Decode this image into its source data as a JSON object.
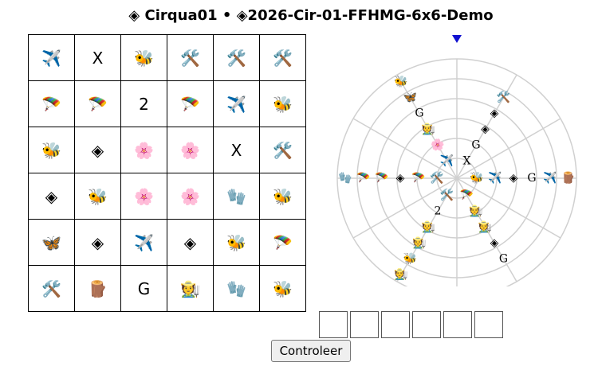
{
  "title": "◈ Cirqua01 • ◈2026-Cir-01-FFHMG-6x6-Demo",
  "grid": {
    "rows": [
      [
        "✈️",
        "X",
        "🐝",
        "🛠️",
        "🛠️",
        "🛠️"
      ],
      [
        "🪂",
        "🪂",
        "2",
        "🪂",
        "✈️",
        "🐝"
      ],
      [
        "🐝",
        "◈",
        "🌸",
        "🌸",
        "X",
        "🛠️"
      ],
      [
        "◈",
        "🐝",
        "🌸",
        "🌸",
        "🧤",
        "🐝"
      ],
      [
        "🦋",
        "◈",
        "✈️",
        "◈",
        "🐝",
        "🪂"
      ],
      [
        "🛠️",
        "🪵",
        "G",
        "🧑‍🌾",
        "🧤",
        "🐝"
      ]
    ]
  },
  "wheel": {
    "arms": [
      [
        "🐝",
        "✈️",
        "◈",
        "G",
        "✈️",
        "🪵"
      ],
      [
        "🪂",
        "🧑‍🌾",
        "🧑‍🌾",
        "◈",
        "G"
      ],
      [
        "🛠️",
        "2",
        "🧑‍🌾",
        "🧑‍🌾",
        "🐝",
        "🧑‍🌾"
      ],
      [
        "🛠️",
        "🪂",
        "◈",
        "🪂",
        "🪂",
        "🧤"
      ],
      [
        "✈️",
        "🌸",
        "🧑‍🌾",
        "G",
        "🦋",
        "🐝"
      ],
      [
        "X",
        "G",
        "◈",
        "◈",
        "🛠️"
      ]
    ]
  },
  "button": "Controleer"
}
